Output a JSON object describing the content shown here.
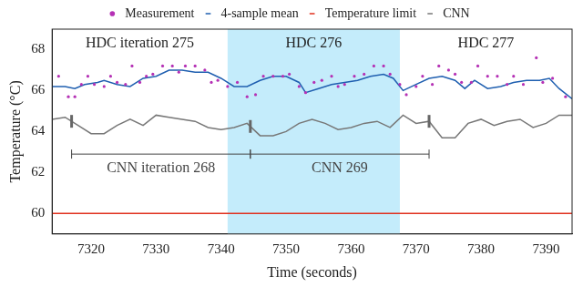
{
  "chart_data": {
    "type": "line",
    "x_label": "Time (seconds)",
    "y_label": "Temperature (°C)",
    "xlim": [
      7314,
      7394
    ],
    "ylim": [
      59,
      69
    ],
    "xticks": [
      7320,
      7330,
      7340,
      7350,
      7360,
      7370,
      7380,
      7390
    ],
    "yticks": [
      60,
      62,
      64,
      66,
      68
    ],
    "grid": false,
    "legend": "top",
    "series": [
      {
        "name": "Measurement",
        "type": "scatter",
        "marker": "dot",
        "color": "#b531b5",
        "x": [
          7315,
          7316.5,
          7317.5,
          7318.5,
          7319.5,
          7320.5,
          7322,
          7323,
          7324,
          7325.3,
          7326.3,
          7327.5,
          7328.5,
          7329.5,
          7331,
          7332.5,
          7333.5,
          7334.5,
          7336,
          7337.5,
          7338.5,
          7339.5,
          7341,
          7342.5,
          7344,
          7345.3,
          7346.5,
          7348,
          7349.5,
          7350.5,
          7352,
          7353,
          7354.3,
          7355.5,
          7357,
          7358,
          7359,
          7360.5,
          7362,
          7363.5,
          7365,
          7366,
          7367.5,
          7368.5,
          7370,
          7371,
          7372.5,
          7373.5,
          7375,
          7376,
          7377,
          7378.5,
          7379.5,
          7381,
          7382.5,
          7384,
          7385,
          7386.5,
          7388.5,
          7389.5,
          7391,
          7393
        ],
        "values": [
          66.7,
          65.7,
          65.7,
          66.3,
          66.7,
          66.3,
          66.2,
          66.7,
          66.4,
          66.3,
          67.2,
          66.4,
          66.7,
          66.8,
          67.2,
          67.2,
          66.9,
          67.2,
          67.2,
          67.0,
          66.4,
          66.5,
          66.2,
          66.4,
          65.7,
          65.8,
          66.7,
          66.7,
          66.7,
          66.8,
          66.2,
          65.9,
          66.4,
          66.5,
          66.7,
          66.2,
          66.3,
          66.7,
          66.8,
          67.2,
          67.2,
          66.8,
          66.3,
          65.8,
          66.2,
          66.7,
          66.3,
          67.2,
          67.0,
          66.8,
          66.4,
          66.4,
          67.2,
          66.7,
          66.7,
          66.3,
          66.7,
          66.3,
          67.6,
          66.4,
          66.6,
          65.7
        ]
      },
      {
        "name": "4-sample mean",
        "type": "line",
        "line_style": "solid",
        "color": "#1f5fb0",
        "x": [
          7314,
          7316,
          7317.5,
          7319,
          7321,
          7322,
          7324,
          7326,
          7328,
          7330,
          7332,
          7334,
          7336,
          7338,
          7340,
          7342,
          7344,
          7346,
          7348,
          7350,
          7352,
          7353,
          7355,
          7357,
          7359,
          7361,
          7363,
          7365,
          7366.5,
          7368,
          7370,
          7372,
          7374,
          7376,
          7377.5,
          7379,
          7381,
          7383,
          7385,
          7387,
          7389,
          7390.5,
          7392,
          7394
        ],
        "values": [
          66.2,
          66.2,
          66.1,
          66.3,
          66.4,
          66.5,
          66.3,
          66.2,
          66.6,
          66.7,
          67.0,
          67.0,
          66.9,
          66.9,
          66.6,
          66.2,
          66.2,
          66.5,
          66.7,
          66.7,
          66.4,
          65.9,
          66.1,
          66.3,
          66.4,
          66.5,
          66.7,
          66.8,
          66.6,
          66.0,
          66.3,
          66.6,
          66.7,
          66.5,
          66.1,
          66.5,
          66.1,
          66.2,
          66.4,
          66.5,
          66.5,
          66.6,
          66.1,
          65.6
        ]
      },
      {
        "name": "Temperature limit",
        "type": "line",
        "line_style": "solid",
        "color": "#e0301e",
        "x": [
          7314,
          7394
        ],
        "values": [
          60,
          60
        ]
      },
      {
        "name": "CNN",
        "type": "line",
        "line_style": "solid",
        "color": "#777777",
        "x": [
          7314,
          7316,
          7318,
          7320,
          7322,
          7324,
          7326,
          7328,
          7330,
          7332,
          7334,
          7336,
          7338,
          7340,
          7342,
          7344,
          7346,
          7348,
          7350,
          7352,
          7354,
          7356,
          7358,
          7360,
          7362,
          7364,
          7366,
          7368,
          7370,
          7372,
          7374,
          7376,
          7378,
          7380,
          7382,
          7384,
          7386,
          7388,
          7390,
          7392,
          7394
        ],
        "values": [
          64.6,
          64.7,
          64.3,
          63.9,
          63.9,
          64.3,
          64.6,
          64.3,
          64.8,
          64.7,
          64.6,
          64.5,
          64.2,
          64.1,
          64.2,
          64.4,
          63.8,
          63.8,
          64.0,
          64.4,
          64.6,
          64.4,
          64.1,
          64.2,
          64.4,
          64.5,
          64.2,
          64.8,
          64.4,
          64.5,
          63.7,
          63.7,
          64.4,
          64.6,
          64.3,
          64.5,
          64.6,
          64.2,
          64.4,
          64.8,
          64.8
        ]
      }
    ],
    "regions": [
      {
        "label": "HDC iteration 275",
        "x": [
          7314,
          7341
        ]
      },
      {
        "label": "HDC 276",
        "x": [
          7341,
          7367.5
        ],
        "color": "#c4ecfb"
      },
      {
        "label": "HDC 277",
        "x": [
          7367.5,
          7394
        ]
      }
    ],
    "intervals": [
      {
        "label": "CNN iteration 268",
        "x": [
          7317,
          7344.5
        ],
        "y": 62.9
      },
      {
        "label": "CNN 269",
        "x": [
          7344.5,
          7372
        ],
        "y": 62.9
      }
    ],
    "cnn_iteration_marks": [
      7317,
      7344.5,
      7372
    ]
  }
}
